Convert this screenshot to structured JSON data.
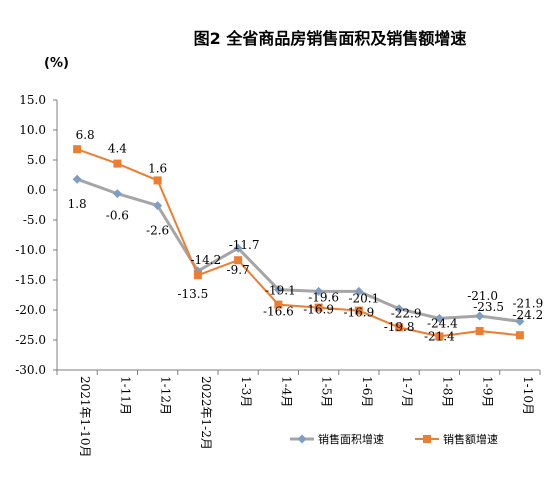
{
  "chart_data": {
    "type": "line",
    "title": "图2 全省商品房销售面积及销售额增速",
    "unit_label": "(%)",
    "categories": [
      "2021年1-10月",
      "1-11月",
      "1-12月",
      "2022年1-2月",
      "1-3月",
      "1-4月",
      "1-5月",
      "1-6月",
      "1-7月",
      "1-8月",
      "1-9月",
      "1-10月"
    ],
    "ylim": [
      -30.0,
      15.0
    ],
    "yticks": [
      "15.0",
      "10.0",
      "5.0",
      "0.0",
      "-5.0",
      "-10.0",
      "-15.0",
      "-20.0",
      "-25.0",
      "-30.0"
    ],
    "series": [
      {
        "name": "销售面积增速",
        "color": "#7f9ec6",
        "line_color": "#a5a5a5",
        "marker": "diamond",
        "values": [
          1.8,
          -0.6,
          -2.6,
          -13.5,
          -9.7,
          -16.6,
          -16.9,
          -16.9,
          -19.8,
          -21.4,
          -21.0,
          -21.9
        ],
        "labels": [
          "1.8",
          "-0.6",
          "-2.6",
          "-13.5",
          "-9.7",
          "-16.6",
          "-16.9",
          "-16.9",
          "-19.8",
          "-21.4",
          "-21.0",
          "-21.9"
        ]
      },
      {
        "name": "销售额增速",
        "color": "#ed7d31",
        "line_color": "#ed7d31",
        "marker": "square",
        "values": [
          6.8,
          4.4,
          1.6,
          -14.2,
          -11.7,
          -19.1,
          -19.6,
          -20.1,
          -22.9,
          -24.4,
          -23.5,
          -24.2
        ],
        "labels": [
          "6.8",
          "4.4",
          "1.6",
          "-14.2",
          "-11.7",
          "-19.1",
          "-19.6",
          "-20.1",
          "-22.9",
          "-24.4",
          "-23.5",
          "-24.2"
        ]
      }
    ],
    "grid": false,
    "legend_position": "bottom-right"
  }
}
